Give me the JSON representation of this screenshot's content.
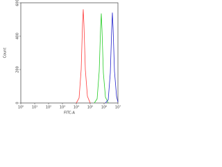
{
  "chart_data": {
    "type": "line",
    "x_label": "FITC-A",
    "y_label": "Count",
    "log_x": true,
    "xlim": [
      1,
      10000000
    ],
    "xticks": [
      {
        "value": 1,
        "label": "10⁰"
      },
      {
        "value": 10,
        "label": "10¹"
      },
      {
        "value": 100,
        "label": "10²"
      },
      {
        "value": 1000,
        "label": "10³"
      },
      {
        "value": 10000,
        "label": "10⁴"
      },
      {
        "value": 100000,
        "label": "10⁵"
      },
      {
        "value": 1000000,
        "label": "10⁶"
      },
      {
        "value": 10000000,
        "label": "10⁷"
      }
    ],
    "ylim": [
      0,
      600
    ],
    "yticks": [
      0,
      200,
      400,
      600
    ],
    "series": [
      {
        "color": "#ff3b3b",
        "x": [
          10000,
          15849,
          22387,
          28184,
          31623,
          35481,
          44668,
          63096,
          100000
        ],
        "values": [
          0,
          30,
          200,
          480,
          560,
          470,
          200,
          40,
          0
        ]
      },
      {
        "color": "#22cc22",
        "x": [
          199526,
          316228,
          446684,
          562341,
          630957,
          707946,
          891251,
          1258925,
          1995262
        ],
        "values": [
          0,
          25,
          190,
          450,
          535,
          440,
          180,
          35,
          0
        ]
      },
      {
        "color": "#2222cc",
        "x": [
          1258925,
          1995262,
          2818383,
          3548134,
          3981072,
          4466836,
          5623413,
          7943282,
          10000000
        ],
        "values": [
          0,
          20,
          180,
          440,
          540,
          450,
          190,
          40,
          5
        ]
      }
    ]
  }
}
